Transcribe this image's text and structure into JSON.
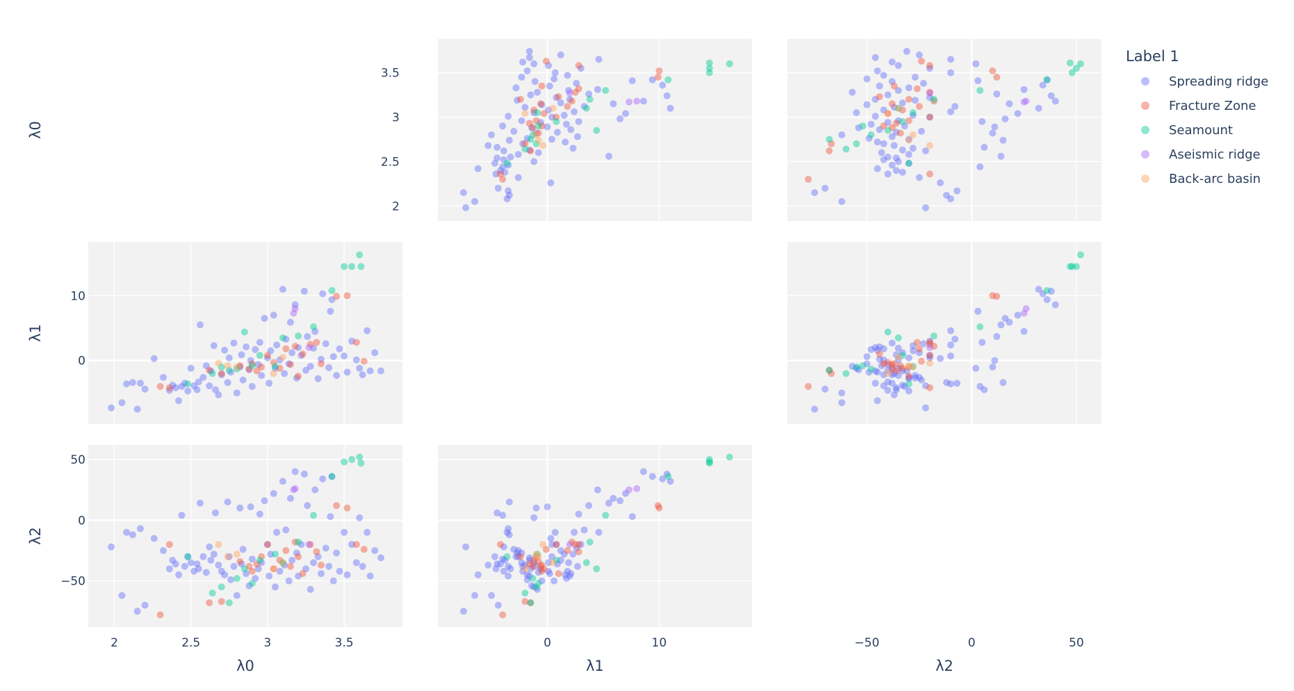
{
  "chart_data": {
    "type": "scatter",
    "subtype": "scatter-matrix",
    "dimensions": [
      "λ0",
      "λ1",
      "λ2"
    ],
    "ranges": {
      "λ0": [
        1.83,
        3.88
      ],
      "λ1": [
        -9.8,
        18.3
      ],
      "λ2": [
        -88,
        62
      ]
    },
    "ticks": {
      "λ0": {
        "row": [
          2,
          2.5,
          3,
          3.5
        ],
        "col": [
          2,
          2.5,
          3,
          3.5
        ]
      },
      "λ1": {
        "row": [
          0,
          10
        ],
        "col": [
          0,
          10
        ]
      },
      "λ2": {
        "row": [
          -50,
          0,
          50
        ],
        "col": [
          -50,
          0,
          50
        ]
      }
    },
    "grid": true,
    "show_diagonal": false,
    "legend": {
      "title": "Label 1",
      "placement": "right",
      "entries": [
        "Spreading ridge",
        "Fracture Zone",
        "Seamount",
        "Aseismic ridge",
        "Back-arc basin"
      ]
    },
    "series": [
      {
        "name": "Spreading ridge",
        "color": "#636efa",
        "points": [
          [
            1.98,
            -7.3,
            -22
          ],
          [
            2.05,
            -6.5,
            -62
          ],
          [
            2.08,
            -3.6,
            -10
          ],
          [
            2.12,
            -3.4,
            -12
          ],
          [
            2.15,
            -7.5,
            -75
          ],
          [
            2.17,
            -3.5,
            -7
          ],
          [
            2.2,
            -4.4,
            -70
          ],
          [
            2.26,
            0.3,
            -15
          ],
          [
            2.32,
            -2.6,
            -25
          ],
          [
            2.36,
            -4.6,
            -40
          ],
          [
            2.38,
            -3.8,
            -33
          ],
          [
            2.4,
            -4.2,
            -36
          ],
          [
            2.42,
            -6.2,
            -45
          ],
          [
            2.44,
            -4.0,
            4
          ],
          [
            2.46,
            -3.5,
            -38
          ],
          [
            2.48,
            -4.7,
            -30
          ],
          [
            2.5,
            -1.2,
            -35
          ],
          [
            2.52,
            -3.9,
            -42
          ],
          [
            2.54,
            -4.5,
            -36
          ],
          [
            2.55,
            -3.3,
            -40
          ],
          [
            2.56,
            5.5,
            14
          ],
          [
            2.58,
            -2.6,
            -30
          ],
          [
            2.6,
            -0.8,
            -43
          ],
          [
            2.62,
            -3.9,
            -22
          ],
          [
            2.63,
            -1.6,
            -33
          ],
          [
            2.65,
            2.3,
            -28
          ],
          [
            2.66,
            -4.5,
            6
          ],
          [
            2.68,
            -5.3,
            -37
          ],
          [
            2.7,
            -2.2,
            -42
          ],
          [
            2.72,
            1.6,
            -45
          ],
          [
            2.74,
            -3.4,
            15
          ],
          [
            2.75,
            0.4,
            -30
          ],
          [
            2.76,
            -1.8,
            -49
          ],
          [
            2.78,
            2.7,
            -38
          ],
          [
            2.8,
            -5.0,
            -62
          ],
          [
            2.82,
            -1.0,
            10
          ],
          [
            2.83,
            0.9,
            -36
          ],
          [
            2.84,
            -3.0,
            -24
          ],
          [
            2.86,
            2.1,
            -44
          ],
          [
            2.88,
            -1.4,
            -54
          ],
          [
            2.89,
            0.0,
            11
          ],
          [
            2.9,
            -4.0,
            -32
          ],
          [
            2.92,
            1.7,
            -48
          ],
          [
            2.94,
            -0.6,
            -40
          ],
          [
            2.95,
            2.8,
            5
          ],
          [
            2.96,
            -2.3,
            -35
          ],
          [
            2.98,
            6.5,
            16
          ],
          [
            3.0,
            0.4,
            -20
          ],
          [
            3.01,
            -3.5,
            -46
          ],
          [
            3.02,
            1.5,
            -28
          ],
          [
            3.04,
            7.0,
            22
          ],
          [
            3.05,
            -1.2,
            -55
          ],
          [
            3.06,
            2.4,
            -10
          ],
          [
            3.08,
            0.1,
            -42
          ],
          [
            3.1,
            11.0,
            32
          ],
          [
            3.11,
            -2.0,
            -37
          ],
          [
            3.12,
            3.3,
            -8
          ],
          [
            3.14,
            -0.5,
            -50
          ],
          [
            3.15,
            5.9,
            18
          ],
          [
            3.16,
            1.2,
            -33
          ],
          [
            3.18,
            8.6,
            40
          ],
          [
            3.19,
            -2.7,
            -27
          ],
          [
            3.2,
            2.0,
            -46
          ],
          [
            3.22,
            0.8,
            -20
          ],
          [
            3.24,
            10.7,
            38
          ],
          [
            3.25,
            -1.5,
            -40
          ],
          [
            3.26,
            3.7,
            12
          ],
          [
            3.28,
            -0.9,
            -57
          ],
          [
            3.3,
            1.9,
            -35
          ],
          [
            3.31,
            4.5,
            25
          ],
          [
            3.33,
            -2.8,
            -30
          ],
          [
            3.35,
            0.2,
            -44
          ],
          [
            3.36,
            10.3,
            34
          ],
          [
            3.38,
            2.6,
            -23
          ],
          [
            3.4,
            -1.1,
            -38
          ],
          [
            3.41,
            7.6,
            3
          ],
          [
            3.42,
            9.4,
            36
          ],
          [
            3.43,
            0.6,
            -50
          ],
          [
            3.45,
            -2.3,
            -27
          ],
          [
            3.47,
            1.8,
            -42
          ],
          [
            3.5,
            0.7,
            -10
          ],
          [
            3.52,
            -1.8,
            -45
          ],
          [
            3.55,
            3.0,
            -20
          ],
          [
            3.58,
            0.1,
            -35
          ],
          [
            3.6,
            -1.2,
            2
          ],
          [
            3.62,
            -2.2,
            -38
          ],
          [
            3.65,
            4.6,
            -10
          ],
          [
            3.67,
            -1.6,
            -46
          ],
          [
            3.7,
            1.2,
            -25
          ],
          [
            3.74,
            -1.6,
            -31
          ]
        ]
      },
      {
        "name": "Fracture Zone",
        "color": "#ef553b",
        "points": [
          [
            2.3,
            -4.0,
            -78
          ],
          [
            2.36,
            -4.2,
            -20
          ],
          [
            2.62,
            -1.5,
            -68
          ],
          [
            2.7,
            -2.0,
            -67
          ],
          [
            2.82,
            -0.8,
            -34
          ],
          [
            2.88,
            -1.3,
            -38
          ],
          [
            2.9,
            -0.5,
            -42
          ],
          [
            2.93,
            -1.6,
            -36
          ],
          [
            2.96,
            -1.0,
            -30
          ],
          [
            3.0,
            0.8,
            -20
          ],
          [
            3.04,
            -0.3,
            -40
          ],
          [
            3.08,
            -1.2,
            -33
          ],
          [
            3.12,
            1.8,
            -25
          ],
          [
            3.15,
            -0.6,
            -38
          ],
          [
            3.18,
            2.2,
            -18
          ],
          [
            3.2,
            -2.4,
            -30
          ],
          [
            3.23,
            1.0,
            -44
          ],
          [
            3.28,
            2.5,
            -20
          ],
          [
            3.32,
            2.8,
            -26
          ],
          [
            3.35,
            -0.5,
            -37
          ],
          [
            3.45,
            9.9,
            12
          ],
          [
            3.52,
            10.0,
            10
          ],
          [
            3.58,
            2.8,
            -20
          ],
          [
            3.63,
            -0.1,
            -24
          ]
        ]
      },
      {
        "name": "Seamount",
        "color": "#00cc96",
        "points": [
          [
            2.48,
            -3.6,
            -30
          ],
          [
            2.64,
            -2.0,
            -60
          ],
          [
            2.7,
            -1.0,
            -55
          ],
          [
            2.75,
            -1.5,
            -68
          ],
          [
            2.8,
            -1.3,
            -48
          ],
          [
            2.85,
            4.4,
            -40
          ],
          [
            2.9,
            -0.8,
            -52
          ],
          [
            2.95,
            0.8,
            -33
          ],
          [
            3.05,
            -0.9,
            -28
          ],
          [
            3.1,
            3.5,
            -35
          ],
          [
            3.2,
            3.8,
            -18
          ],
          [
            3.3,
            5.2,
            4
          ],
          [
            3.42,
            10.8,
            36
          ],
          [
            3.5,
            14.5,
            48
          ],
          [
            3.55,
            14.5,
            50
          ],
          [
            3.6,
            16.3,
            52
          ],
          [
            3.61,
            14.5,
            47
          ]
        ]
      },
      {
        "name": "Aseismic ridge",
        "color": "#ab63fa",
        "points": [
          [
            3.17,
            7.3,
            25
          ],
          [
            3.18,
            8.0,
            26
          ],
          [
            3.27,
            2.0,
            -20
          ]
        ]
      },
      {
        "name": "Back-arc basin",
        "color": "#ffa15a",
        "points": [
          [
            2.68,
            -0.4,
            -20
          ],
          [
            2.74,
            -0.8,
            -30
          ],
          [
            2.8,
            -1.0,
            -28
          ],
          [
            3.04,
            -2.0,
            -40
          ],
          [
            3.1,
            0.5,
            -35
          ]
        ]
      }
    ]
  }
}
